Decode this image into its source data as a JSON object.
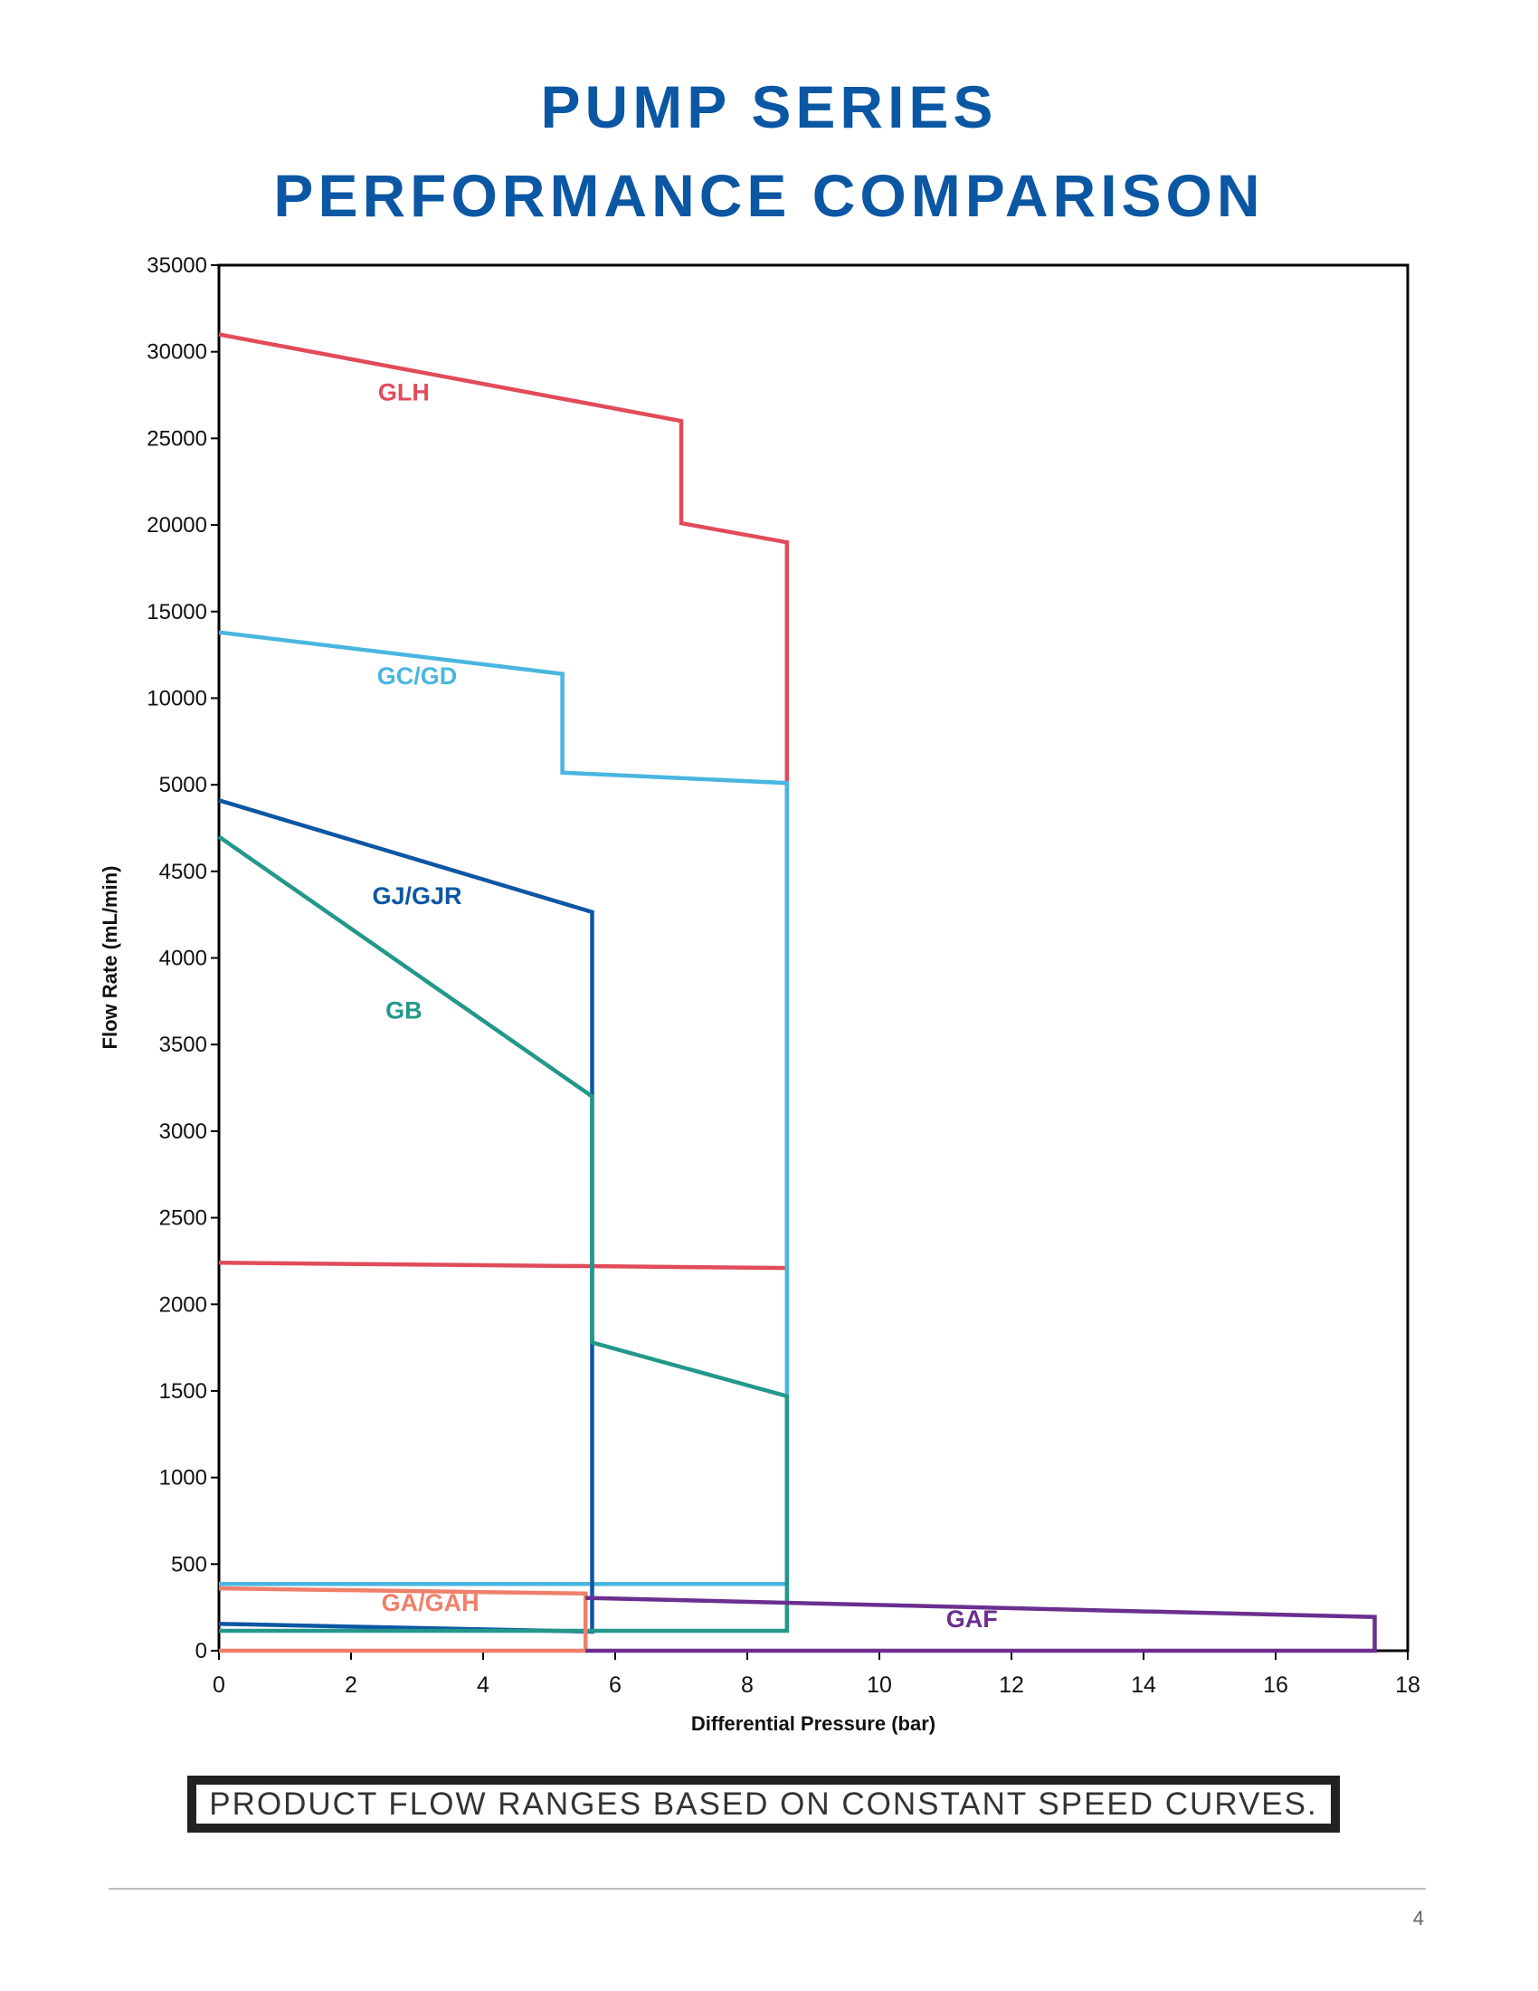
{
  "page": {
    "title_line1": "PUMP SERIES",
    "title_line2": "PERFORMANCE COMPARISON",
    "note": "PRODUCT FLOW RANGES BASED ON CONSTANT SPEED CURVES.",
    "page_number": "4"
  },
  "chart_data": {
    "type": "line",
    "title": "",
    "xlabel": "Differential Pressure (bar)",
    "ylabel": "Flow Rate (mL/min)",
    "x_ticks": [
      0,
      2,
      4,
      6,
      8,
      10,
      12,
      14,
      16,
      18
    ],
    "y_ticks": [
      0,
      500,
      1000,
      1500,
      2000,
      2500,
      3000,
      3500,
      4000,
      4500,
      5000,
      10000,
      15000,
      20000,
      25000,
      30000,
      35000
    ],
    "xlim": [
      0,
      18
    ],
    "ylim": [
      0,
      35000
    ],
    "y_scale_note": "piecewise: 0-5000 in steps of 500, 5000-35000 in steps of 5000",
    "grid": false,
    "series": [
      {
        "name": "GLH",
        "color": "#e14b5a",
        "points": [
          [
            0,
            31000
          ],
          [
            7,
            26000
          ],
          [
            7,
            20100
          ],
          [
            8.6,
            19000
          ],
          [
            8.6,
            2210
          ],
          [
            0,
            2240
          ]
        ],
        "label_pos": [
          2.8,
          27200
        ]
      },
      {
        "name": "GC/GD",
        "color": "#4ab6e0",
        "points": [
          [
            0,
            13800
          ],
          [
            5.2,
            11400
          ],
          [
            5.2,
            5700
          ],
          [
            8.6,
            5100
          ],
          [
            8.6,
            385
          ],
          [
            0,
            385
          ]
        ],
        "label_pos": [
          3.0,
          10800
        ]
      },
      {
        "name": "GJ/GJR",
        "color": "#0b57a4",
        "points": [
          [
            0,
            4910
          ],
          [
            5.65,
            4265
          ],
          [
            5.65,
            110
          ],
          [
            0,
            155
          ]
        ],
        "label_pos": [
          3.0,
          4310
        ]
      },
      {
        "name": "GB",
        "color": "#23988a",
        "points": [
          [
            0,
            4700
          ],
          [
            5.65,
            3200
          ],
          [
            5.65,
            1780
          ],
          [
            8.6,
            1470
          ],
          [
            8.6,
            115
          ],
          [
            0,
            115
          ]
        ],
        "label_pos": [
          2.8,
          3650
        ]
      },
      {
        "name": "GA/GAH",
        "color": "#ef7f6b",
        "points": [
          [
            0,
            360
          ],
          [
            5.55,
            330
          ],
          [
            5.55,
            0
          ],
          [
            0,
            0
          ]
        ],
        "label_pos": [
          3.2,
          230
        ]
      },
      {
        "name": "GAF",
        "color": "#6b2f8f",
        "points": [
          [
            5.55,
            305
          ],
          [
            17.5,
            195
          ],
          [
            17.5,
            0
          ],
          [
            5.55,
            0
          ]
        ],
        "label_pos": [
          11.4,
          135
        ]
      }
    ]
  }
}
